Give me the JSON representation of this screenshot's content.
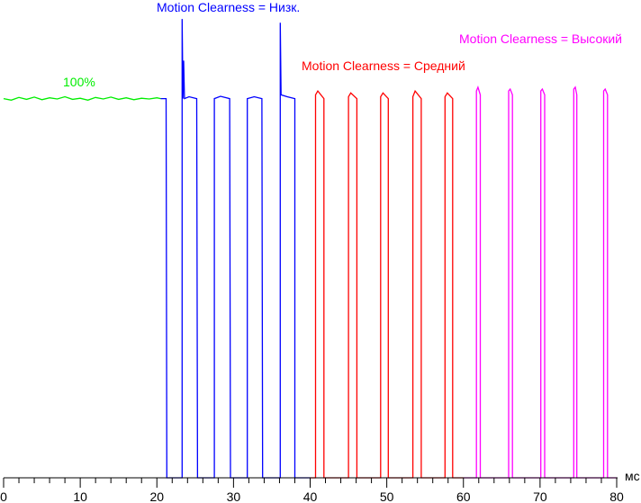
{
  "chart_data": {
    "type": "line",
    "title": "",
    "xlabel": "мс",
    "ylabel": "",
    "xlim": [
      0,
      80
    ],
    "ylim": [
      0,
      126
    ],
    "x_major_ticks": [
      0,
      10,
      20,
      30,
      40,
      50,
      60,
      70,
      80
    ],
    "x_minor_step": 2,
    "grid": false,
    "annotations": [
      {
        "text": "100%",
        "color": "#00ee00",
        "series": "100%"
      },
      {
        "text": "Motion Clearness = Низк.",
        "color": "#0000ff",
        "series": "low"
      },
      {
        "text": "Motion Clearness = Средний",
        "color": "#ff0000",
        "series": "medium"
      },
      {
        "text": "Motion Clearness = Высокий",
        "color": "#ff00ff",
        "series": "high"
      }
    ],
    "series": [
      {
        "name": "100%",
        "color": "#00ee00",
        "points": [
          [
            0,
            100
          ],
          [
            1,
            99.6
          ],
          [
            2,
            100.3
          ],
          [
            3,
            99.8
          ],
          [
            4,
            100.4
          ],
          [
            5,
            99.7
          ],
          [
            6,
            100.2
          ],
          [
            7,
            99.9
          ],
          [
            8,
            100.5
          ],
          [
            9,
            99.8
          ],
          [
            10,
            100.1
          ],
          [
            11,
            99.6
          ],
          [
            12,
            100.3
          ],
          [
            13,
            99.9
          ],
          [
            14,
            100.4
          ],
          [
            15,
            99.8
          ],
          [
            16,
            100.2
          ],
          [
            17,
            99.7
          ],
          [
            18,
            100.1
          ],
          [
            19,
            99.9
          ],
          [
            20,
            100.2
          ],
          [
            20.5,
            100
          ]
        ]
      },
      {
        "name": "low",
        "color": "#0000ff",
        "points": [
          [
            20.5,
            100
          ],
          [
            21.2,
            100
          ],
          [
            21.3,
            0
          ],
          [
            23.3,
            0
          ],
          [
            23.3,
            121
          ],
          [
            23.4,
            100
          ],
          [
            23.5,
            110
          ],
          [
            23.6,
            100
          ],
          [
            24.2,
            100.5
          ],
          [
            25.2,
            100
          ],
          [
            25.3,
            0
          ],
          [
            27.5,
            0
          ],
          [
            27.5,
            100
          ],
          [
            28.3,
            100.6
          ],
          [
            29.5,
            100
          ],
          [
            29.6,
            0
          ],
          [
            31.8,
            0
          ],
          [
            31.8,
            100
          ],
          [
            32.7,
            100.5
          ],
          [
            33.7,
            100
          ],
          [
            33.8,
            0
          ],
          [
            36.1,
            0
          ],
          [
            36.1,
            120
          ],
          [
            36.2,
            101
          ],
          [
            37.0,
            100.5
          ],
          [
            38.0,
            100
          ],
          [
            38.0,
            0
          ],
          [
            40.0,
            0
          ]
        ]
      },
      {
        "name": "medium",
        "color": "#ff0000",
        "points": [
          [
            40.0,
            0
          ],
          [
            40.7,
            0
          ],
          [
            40.7,
            101
          ],
          [
            41.0,
            102
          ],
          [
            41.8,
            100
          ],
          [
            41.8,
            0
          ],
          [
            45.0,
            0
          ],
          [
            45.0,
            100.5
          ],
          [
            45.3,
            101.5
          ],
          [
            46.1,
            100
          ],
          [
            46.1,
            0
          ],
          [
            49.2,
            0
          ],
          [
            49.2,
            100.5
          ],
          [
            49.5,
            101.5
          ],
          [
            50.2,
            100
          ],
          [
            50.2,
            0
          ],
          [
            53.4,
            0
          ],
          [
            53.4,
            100.5
          ],
          [
            53.7,
            102
          ],
          [
            54.5,
            100
          ],
          [
            54.5,
            0
          ],
          [
            57.6,
            0
          ],
          [
            57.6,
            100.5
          ],
          [
            57.9,
            101.5
          ],
          [
            58.6,
            100
          ],
          [
            58.6,
            0
          ],
          [
            60.0,
            0
          ]
        ]
      },
      {
        "name": "high",
        "color": "#ff00ff",
        "points": [
          [
            60.0,
            0
          ],
          [
            61.7,
            0
          ],
          [
            61.7,
            102
          ],
          [
            61.9,
            103
          ],
          [
            62.2,
            101
          ],
          [
            62.2,
            0
          ],
          [
            65.9,
            0
          ],
          [
            65.9,
            102
          ],
          [
            66.1,
            102.5
          ],
          [
            66.4,
            101
          ],
          [
            66.4,
            0
          ],
          [
            70.1,
            0
          ],
          [
            70.1,
            102
          ],
          [
            70.3,
            102.5
          ],
          [
            70.6,
            101
          ],
          [
            70.6,
            0
          ],
          [
            74.4,
            0
          ],
          [
            74.4,
            102.5
          ],
          [
            74.6,
            103
          ],
          [
            74.8,
            101
          ],
          [
            74.8,
            0
          ],
          [
            78.3,
            0
          ],
          [
            78.3,
            102
          ],
          [
            78.5,
            102.5
          ],
          [
            78.8,
            101
          ],
          [
            78.8,
            0
          ],
          [
            80,
            0
          ]
        ]
      }
    ]
  }
}
